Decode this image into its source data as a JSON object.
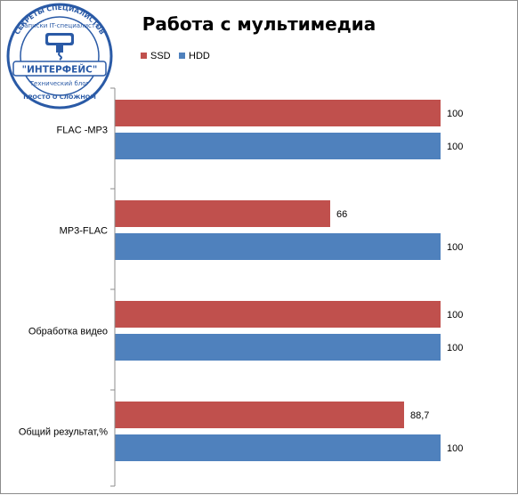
{
  "logo": {
    "ring_top": "СЕКРЕТЫ СПЕЦИАЛИСТОВ",
    "ring_sub": "Записки IT-специалиста",
    "brand": "\"ИНТЕРФЕЙС\"",
    "ring_bottom_1": "Технический блог",
    "ring_bottom_2": "ПРОСТО О СЛОЖНОМ"
  },
  "chart_data": {
    "type": "bar",
    "orientation": "horizontal",
    "title": "Работа с мультимедиа",
    "categories": [
      "FLAC -MP3",
      "MP3-FLAC",
      "Обработка видео",
      "Общий результат,%"
    ],
    "series": [
      {
        "name": "SSD",
        "color": "#c0504d",
        "values": [
          100,
          66,
          100,
          88.7
        ],
        "labels": [
          "100",
          "66",
          "100",
          "88,7"
        ]
      },
      {
        "name": "HDD",
        "color": "#4f81bd",
        "values": [
          100,
          100,
          100,
          100
        ],
        "labels": [
          "100",
          "100",
          "100",
          "100"
        ]
      }
    ],
    "xlim": [
      0,
      100
    ],
    "legend": "top",
    "grid": false,
    "xlabel": "",
    "ylabel": ""
  }
}
